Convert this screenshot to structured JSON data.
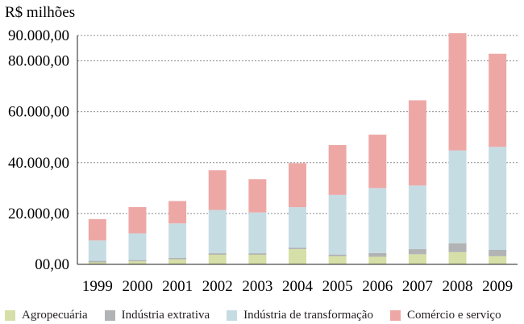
{
  "chart_data": {
    "type": "bar",
    "stacked": true,
    "ylabel": "R$ milhões",
    "categories": [
      "1999",
      "2000",
      "2001",
      "2002",
      "2003",
      "2004",
      "2005",
      "2006",
      "2007",
      "2008",
      "2009"
    ],
    "ylim": [
      0,
      90000
    ],
    "yticks": [
      0,
      20000,
      40000,
      60000,
      80000,
      90000
    ],
    "ytick_labels": [
      "00,00",
      "20.000,00",
      "40.000,00",
      "60.000,00",
      "80.000,00",
      "90.000,00"
    ],
    "grid": true,
    "legend_position": "bottom",
    "series": [
      {
        "name": "Agropecuária",
        "color": "#d5dfa7",
        "values": [
          800,
          1200,
          2000,
          3800,
          3800,
          6000,
          3200,
          3000,
          4000,
          4800,
          3200
        ]
      },
      {
        "name": "Indústria extrativa",
        "color": "#b1b3b4",
        "values": [
          600,
          500,
          600,
          600,
          600,
          500,
          600,
          1500,
          2000,
          3500,
          2500
        ]
      },
      {
        "name": "Indústria de transformação",
        "color": "#c6dce3",
        "values": [
          8000,
          10500,
          13500,
          17000,
          16000,
          16000,
          23500,
          25500,
          25000,
          36500,
          40500
        ]
      },
      {
        "name": "Comércio e serviço",
        "color": "#eda8a6",
        "values": [
          8400,
          10300,
          8800,
          15600,
          13100,
          17300,
          19600,
          21000,
          33500,
          46100,
          36600
        ]
      }
    ]
  }
}
